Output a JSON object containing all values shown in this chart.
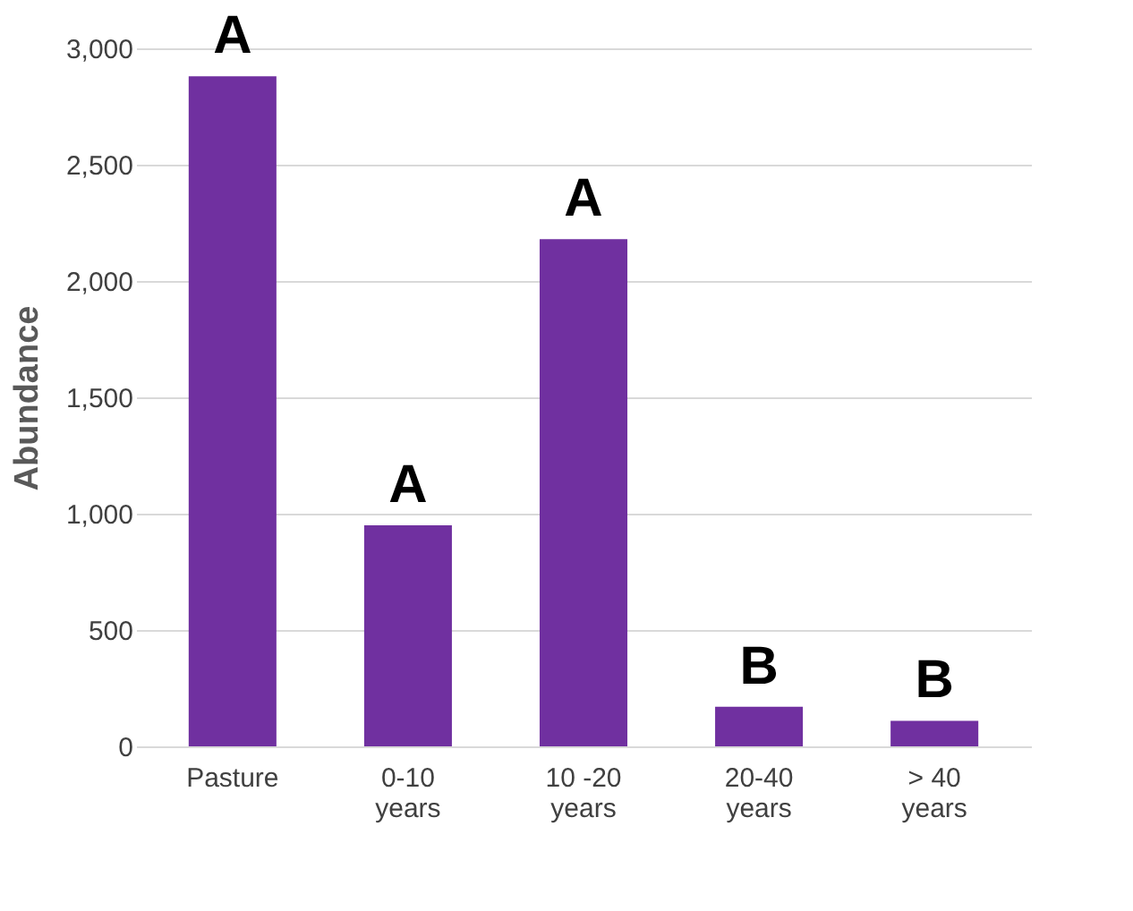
{
  "chart_data": {
    "type": "bar",
    "ylabel": "Abundance",
    "categories": [
      "Pasture",
      "0-10 years",
      "10 -20 years",
      "20-40 years",
      "> 40 years"
    ],
    "values": [
      2880,
      950,
      2180,
      170,
      110
    ],
    "color": "#7030a0",
    "ylim": [
      0,
      3000
    ],
    "yticks": [
      {
        "value": 0,
        "label": "0"
      },
      {
        "value": 500,
        "label": "500"
      },
      {
        "value": 1000,
        "label": "1,000"
      },
      {
        "value": 1500,
        "label": "1,500"
      },
      {
        "value": 2000,
        "label": "2,000"
      },
      {
        "value": 2500,
        "label": "2,500"
      },
      {
        "value": 3000,
        "label": "3,000"
      }
    ],
    "grid": "y",
    "annotations": [
      {
        "text": "A",
        "x": "Pasture",
        "y": 2880
      },
      {
        "text": "A",
        "x": "0-10 years",
        "y": 950
      },
      {
        "text": "A",
        "x": "10 -20 years",
        "y": 2180
      },
      {
        "text": "B",
        "x": "20-40 years",
        "y": 170
      },
      {
        "text": "B",
        "x": "> 40 years",
        "y": 110
      }
    ]
  }
}
